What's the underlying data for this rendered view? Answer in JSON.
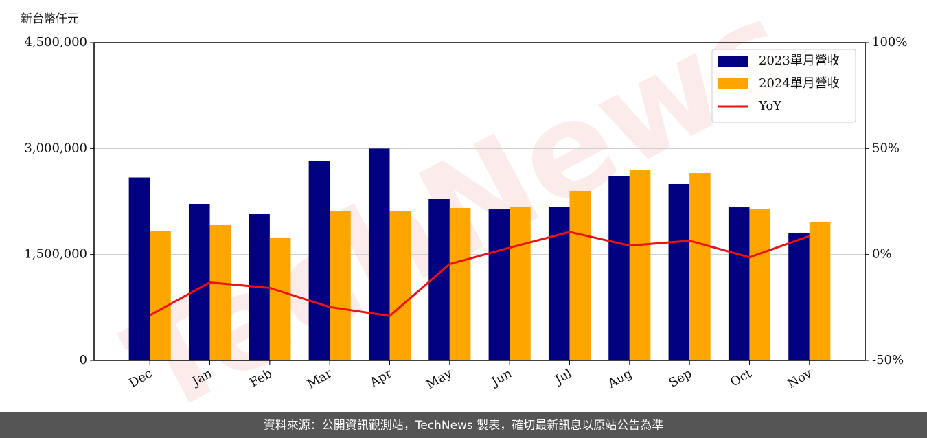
{
  "chart_data": {
    "type": "bar",
    "y_label": "新台幣仟元",
    "watermark": "TechNews",
    "source": "資料來源：公開資訊觀測站，TechNews 製表，確切最新訊息以原站公告為準",
    "categories": [
      "Dec",
      "Jan",
      "Feb",
      "Mar",
      "Apr",
      "May",
      "Jun",
      "Jul",
      "Aug",
      "Sep",
      "Oct",
      "Nov"
    ],
    "series": [
      {
        "name": "2023單月營收",
        "color": "#000080",
        "type": "bar",
        "values": [
          2590000,
          2216000,
          2070000,
          2819000,
          3000000,
          2284000,
          2138000,
          2177000,
          2605000,
          2498000,
          2167000,
          1808000
        ]
      },
      {
        "name": "2024單月營收",
        "color": "#ffa500",
        "type": "bar",
        "values": [
          1837000,
          1915000,
          1730000,
          2109000,
          2119000,
          2158000,
          2177000,
          2401000,
          2692000,
          2653000,
          2138000,
          1963000
        ]
      },
      {
        "name": "YoY",
        "color": "#ee1111",
        "type": "line",
        "axis": "y2",
        "values": [
          -28.7,
          -13.2,
          -15.8,
          -24.8,
          -29.0,
          -4.5,
          3.2,
          10.6,
          4.2,
          6.5,
          -1.3,
          8.7
        ]
      }
    ],
    "ylim": [
      0,
      4500000
    ],
    "yticks": [
      0,
      {
        "value": 1500000,
        "label": "1,500,000"
      },
      {
        "value": 3000000,
        "label": "3,000,000"
      },
      {
        "value": 4500000,
        "label": "4,500,000"
      }
    ],
    "y2lim": [
      -50,
      100
    ],
    "y2ticks": [
      {
        "value": -50,
        "label": "-50%"
      },
      {
        "value": 0,
        "label": "0%"
      },
      {
        "value": 50,
        "label": "50%"
      },
      {
        "value": 100,
        "label": "100%"
      }
    ],
    "grid": true,
    "legend": "upper-right"
  }
}
